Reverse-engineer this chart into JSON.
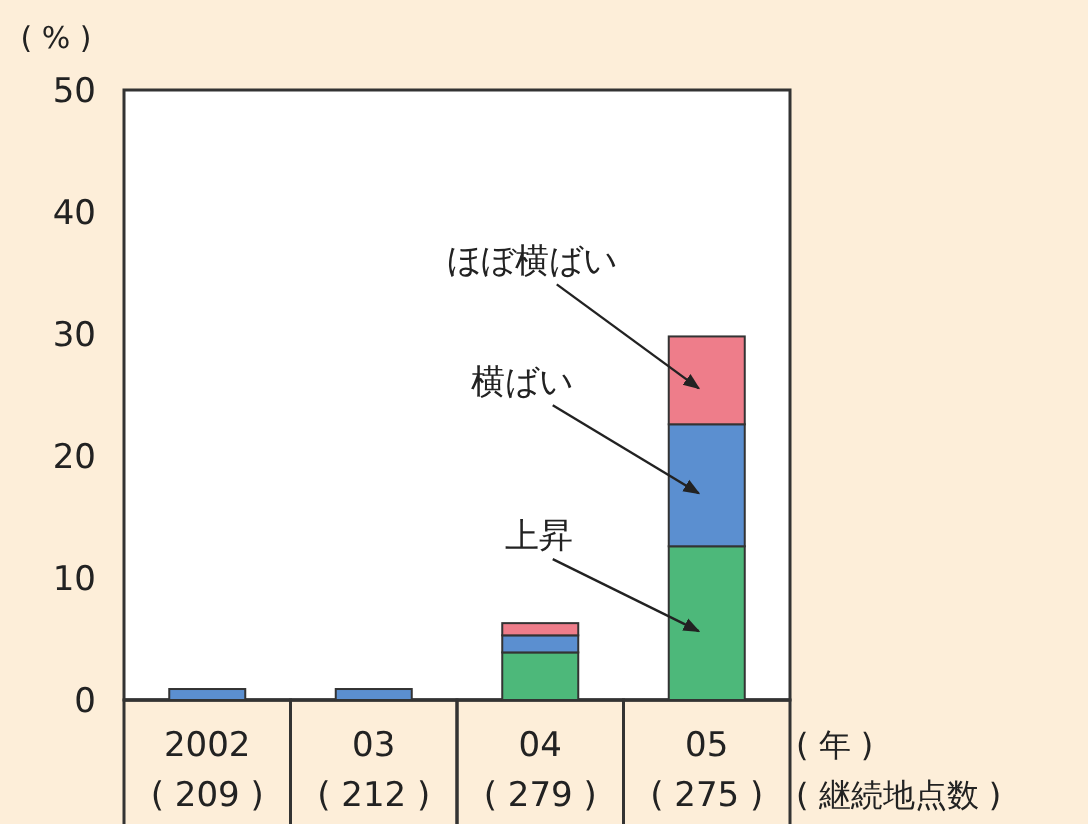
{
  "chart_data": {
    "type": "bar",
    "stacked": true,
    "ylabel": "( % )",
    "xlabel": "( 年 )\n( 継続地点数 )",
    "categories": [
      "2002\n( 209 )",
      "03\n( 212 )",
      "04\n( 279 )",
      "05\n( 275 )"
    ],
    "series": [
      {
        "name": "上昇",
        "color": "#4db87a",
        "values": [
          null,
          null,
          3.9,
          12.6
        ]
      },
      {
        "name": "横ばい",
        "color": "#5b8fd0",
        "values": [
          0.9,
          0.9,
          1.4,
          10.0
        ]
      },
      {
        "name": "ほぼ横ばい",
        "color": "#ee7d8a",
        "values": [
          0,
          0,
          1.0,
          7.2
        ]
      }
    ],
    "ylim": [
      0,
      50
    ],
    "yticks": [
      0,
      10,
      20,
      30,
      40,
      50
    ],
    "grid": false
  }
}
